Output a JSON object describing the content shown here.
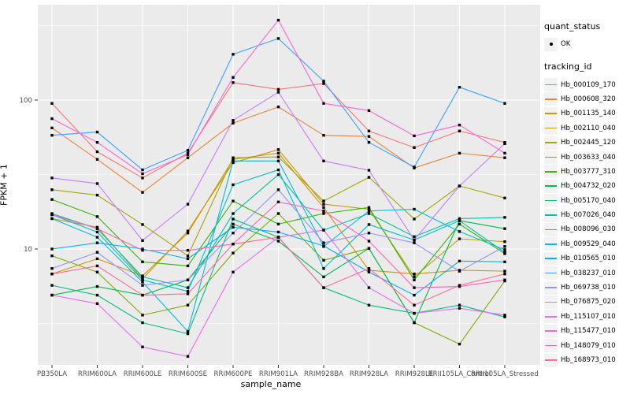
{
  "chart_data": {
    "type": "line",
    "title": "",
    "xlabel": "sample_name",
    "ylabel": "FPKM + 1",
    "y_scale": "log10",
    "y_major_ticks": [
      "10",
      "100"
    ],
    "y_major_values": [
      10,
      100
    ],
    "y_minor_values": [
      3.162,
      31.623,
      316.228
    ],
    "ylim": [
      1.8,
      380
    ],
    "grid": "on",
    "legend_position": "right",
    "categories": [
      "PB350LA",
      "RRIM600LA",
      "RRIM600LE",
      "RRIM600SE",
      "RRIM600PE",
      "RRIM901LA",
      "RRIM928BA",
      "RRIM928LA",
      "RRIM928LE",
      "RRII105LA_Control",
      "RRII105LA_Stressed"
    ],
    "legend": {
      "quant_status_title": "quant_status",
      "quant_status_items": [
        {
          "label": "OK",
          "marker": "point"
        }
      ],
      "tracking_id_title": "tracking_id"
    },
    "series": [
      {
        "name": "Hb_000109_170",
        "color": "#F8766D",
        "values": [
          95,
          45,
          30,
          44,
          131,
          118,
          129,
          62,
          48,
          62,
          52
        ]
      },
      {
        "name": "Hb_000608_320",
        "color": "#EA8331",
        "values": [
          65,
          40,
          24,
          41,
          70,
          90,
          58,
          57,
          35,
          44,
          41
        ]
      },
      {
        "name": "Hb_001135_140",
        "color": "#D89000",
        "values": [
          6.8,
          8.6,
          6.6,
          12.8,
          40,
          44,
          19,
          7.2,
          6.8,
          7.2,
          7.1
        ]
      },
      {
        "name": "Hb_002110_040",
        "color": "#C09B00",
        "values": [
          16,
          14,
          6.3,
          13.2,
          38,
          46.5,
          20,
          18.5,
          6.5,
          11.7,
          11.2
        ]
      },
      {
        "name": "Hb_002445_120",
        "color": "#A3A500",
        "values": [
          25,
          23,
          14.6,
          9,
          41,
          41.5,
          21,
          30.3,
          15.9,
          26.5,
          22
        ]
      },
      {
        "name": "Hb_003633_040",
        "color": "#7CAE00",
        "values": [
          9,
          7,
          3.6,
          4.2,
          9.4,
          17.3,
          8.4,
          10.1,
          3.2,
          2.3,
          6.1
        ]
      },
      {
        "name": "Hb_003777_310",
        "color": "#39B600",
        "values": [
          21.5,
          16.5,
          8.2,
          7.7,
          21,
          14.7,
          17.3,
          19,
          6.2,
          14.7,
          9.3
        ]
      },
      {
        "name": "Hb_004732_020",
        "color": "#00BB4E",
        "values": [
          4.9,
          5.6,
          4.9,
          6.2,
          14.7,
          11.3,
          6.5,
          10.1,
          3.2,
          15.5,
          13.7
        ]
      },
      {
        "name": "Hb_005170_040",
        "color": "#00BF7D",
        "values": [
          5.7,
          4.9,
          3.2,
          2.7,
          15.9,
          12,
          5.5,
          4.2,
          3.7,
          4.2,
          3.5
        ]
      },
      {
        "name": "Hb_007026_040",
        "color": "#00C1A3",
        "values": [
          17.3,
          13.7,
          6.5,
          5.5,
          17.3,
          31.6,
          13.4,
          17.3,
          12.1,
          16,
          16.3
        ]
      },
      {
        "name": "Hb_008096_030",
        "color": "#00BFC4",
        "values": [
          17,
          13,
          6.2,
          5.2,
          27,
          34,
          7.4,
          14.6,
          11.5,
          15.5,
          9.5
        ]
      },
      {
        "name": "Hb_009529_040",
        "color": "#00BAE0",
        "values": [
          16,
          12,
          6,
          2.8,
          39,
          39,
          10.4,
          18,
          18.5,
          13.1,
          9.9
        ]
      },
      {
        "name": "Hb_010565_010",
        "color": "#00B0F6",
        "values": [
          10,
          11,
          10,
          8.6,
          14,
          13,
          10.5,
          7,
          4.9,
          8.3,
          8.2
        ]
      },
      {
        "name": "Hb_038237_010",
        "color": "#35A2FF",
        "values": [
          58,
          61,
          34,
          46,
          203,
          259,
          134,
          52,
          35.5,
          122,
          95
        ]
      },
      {
        "name": "Hb_069738_010",
        "color": "#9590FF",
        "values": [
          7.4,
          9.5,
          5.7,
          6.2,
          12.8,
          25,
          11,
          12.8,
          11,
          7.1,
          10.4
        ]
      },
      {
        "name": "Hb_076875_020",
        "color": "#C77CFF",
        "values": [
          30,
          27.5,
          11.4,
          20,
          73,
          113,
          39,
          33.8,
          11.5,
          26.5,
          51
        ]
      },
      {
        "name": "Hb_115107_010",
        "color": "#E76BF3",
        "values": [
          4.9,
          4.3,
          2.2,
          1.9,
          7,
          12,
          13.4,
          5.5,
          3.7,
          4,
          3.6
        ]
      },
      {
        "name": "Hb_115477_010",
        "color": "#FA62DB",
        "values": [
          75,
          52,
          32,
          43,
          142,
          344,
          95,
          85,
          57.5,
          68,
          44
        ]
      },
      {
        "name": "Hb_148079_010",
        "color": "#FF62BC",
        "values": [
          17,
          13.7,
          9.8,
          9.8,
          10.8,
          20.7,
          18,
          11.3,
          5.5,
          5.6,
          6.2
        ]
      },
      {
        "name": "Hb_168973_010",
        "color": "#FF6A98",
        "values": [
          6.8,
          7.7,
          4.9,
          5,
          10.8,
          12,
          5.5,
          7.4,
          4.2,
          5.7,
          6.8
        ]
      }
    ]
  },
  "colors": {
    "panel_bg": "#EBEBEB",
    "grid_major": "#FFFFFF",
    "grid_minor": "#F7F7F7",
    "tick_label": "#4D4D4D",
    "tick_mark": "#333333",
    "point": "#000000",
    "legend_key_bg": "#F2F2F2"
  }
}
